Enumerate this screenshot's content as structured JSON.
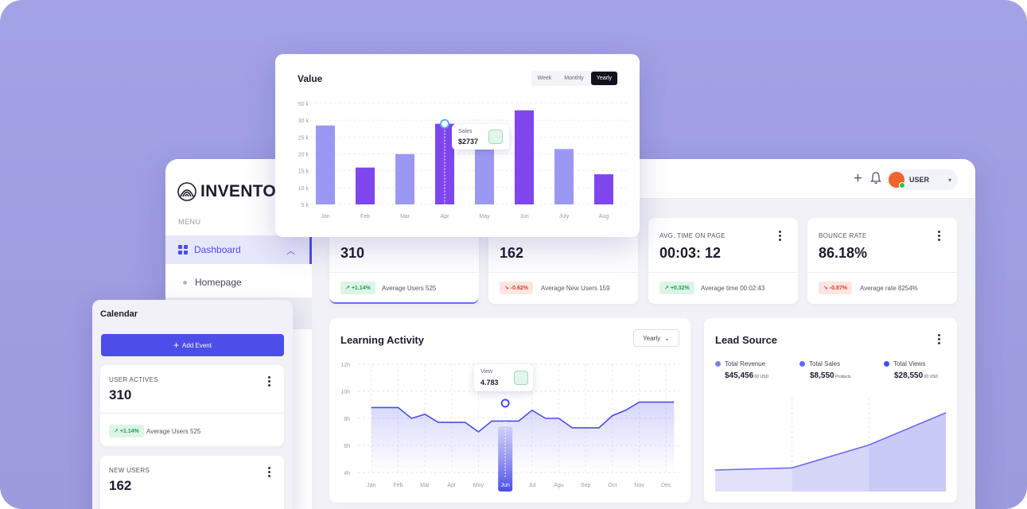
{
  "brand": {
    "name": "INVENTOR"
  },
  "sidebar": {
    "menu_label": "MENU",
    "items": [
      {
        "label": "Dashboard",
        "icon": "grid-icon",
        "active": true
      },
      {
        "label": "Homepage",
        "icon": "dot-icon",
        "active": false
      }
    ]
  },
  "topbar": {
    "user_label": "USER"
  },
  "stats": [
    {
      "label": "",
      "value": "310",
      "badge": "+1.14%",
      "trend": "up",
      "note": "Average Users 525"
    },
    {
      "label": "",
      "value": "162",
      "badge": "-0.62%",
      "trend": "down",
      "note": "Average New Users 159"
    },
    {
      "label": "AVG. TIME ON PAGE",
      "value": "00:03: 12",
      "badge": "+0.32%",
      "trend": "up",
      "note": "Average time 00:02:43"
    },
    {
      "label": "BOUNCE RATE",
      "value": "86.18%",
      "badge": "-0.87%",
      "trend": "down",
      "note": "Average rate 8254%"
    }
  ],
  "learning": {
    "title": "Learning Activity",
    "dropdown": "Yearly",
    "tooltip_label": "View",
    "tooltip_value": "4.783"
  },
  "lead": {
    "title": "Lead Source",
    "legend": [
      {
        "name": "Total Revenue",
        "value": "$45,456",
        "suffix": ".00 USD",
        "color": "#7d7ff0"
      },
      {
        "name": "Total Sales",
        "value": "$8,550",
        "suffix": " Products",
        "color": "#6768ec"
      },
      {
        "name": "Total Views",
        "value": "$28,550",
        "suffix": ".00 USD",
        "color": "#4c4de6"
      }
    ]
  },
  "value_card": {
    "title": "Value",
    "tabs": [
      "Week",
      "Monthly",
      "Yearly"
    ],
    "active_tab": "Yearly",
    "tooltip_label": "Sales",
    "tooltip_value": "$2737"
  },
  "calendar": {
    "title": "Calendar",
    "add_button": "Add Event",
    "cards": [
      {
        "label": "USER ACTIVES",
        "value": "310",
        "badge": "+1.14%",
        "note": "Average Users 525"
      },
      {
        "label": "NEW USERS",
        "value": "162"
      }
    ]
  },
  "chart_data": [
    {
      "type": "bar",
      "title": "Value",
      "categories": [
        "Jan",
        "Feb",
        "Mar",
        "Apr",
        "May",
        "Jun",
        "July",
        "Aug"
      ],
      "values": [
        27500,
        15000,
        19000,
        28000,
        21000,
        32000,
        20500,
        13000
      ],
      "y_ticks": [
        "5 k",
        "10 k",
        "15 k",
        "20 k",
        "25 k",
        "30 k",
        "50 k"
      ],
      "colors": [
        "#9b98f4",
        "#7f46ee",
        "#9b98f4",
        "#7f46ee",
        "#9b98f4",
        "#7f46ee",
        "#9b98f4",
        "#7f46ee"
      ],
      "highlight_index": 3
    },
    {
      "type": "area",
      "title": "Learning Activity",
      "categories": [
        "Jan",
        "Feb",
        "Mar",
        "Apr",
        "May",
        "Jun",
        "Jul",
        "Agu",
        "Sep",
        "Oct",
        "Nov",
        "Dec"
      ],
      "y_ticks": [
        "4h",
        "6h",
        "8h",
        "10h",
        "12h"
      ],
      "ylim": [
        4,
        12
      ],
      "x": [
        0,
        0.5,
        1,
        1.5,
        2,
        2.5,
        3,
        3.5,
        4,
        4.5,
        5,
        5.5,
        6,
        6.5,
        7,
        7.5,
        8,
        8.5,
        9,
        9.5,
        10,
        10.5,
        11,
        11.3
      ],
      "y": [
        8.8,
        8.8,
        8.8,
        8.0,
        8.3,
        7.7,
        7.7,
        7.7,
        7.0,
        7.8,
        7.8,
        7.8,
        8.6,
        8.0,
        8.0,
        7.3,
        7.3,
        7.3,
        8.2,
        8.6,
        9.2,
        9.2,
        9.2,
        9.2
      ],
      "highlight_category": "Jun"
    },
    {
      "type": "area",
      "title": "Lead Source",
      "x": [
        0,
        1,
        2,
        3
      ],
      "y": [
        30,
        33,
        65,
        110
      ],
      "ylim": [
        0,
        120
      ]
    }
  ]
}
